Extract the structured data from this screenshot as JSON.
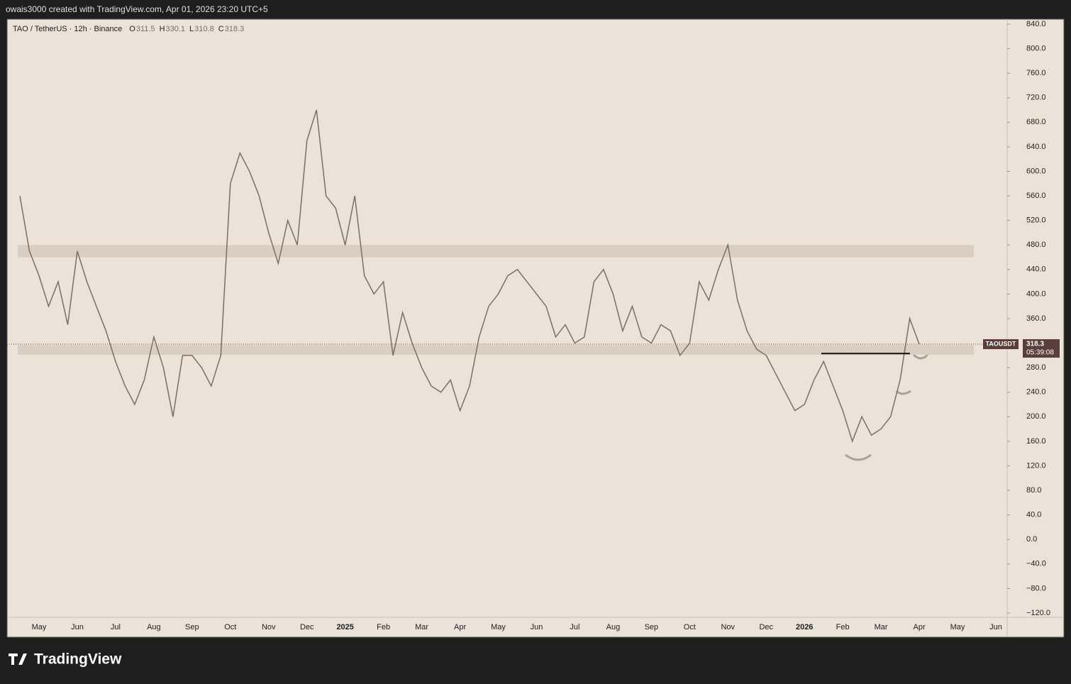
{
  "header": "owais3000 created with TradingView.com, Apr 01, 2026 23:20 UTC+5",
  "footer": "TradingView",
  "chart_data": {
    "type": "line",
    "title": "TAO / TetherUS · 12h · Binance",
    "ohlc": [
      {
        "label": "O",
        "value": 311.5
      },
      {
        "label": "H",
        "value": 330.1
      },
      {
        "label": "L",
        "value": 310.8
      },
      {
        "label": "C",
        "value": 318.3
      }
    ],
    "symbol": "TAOUSDT",
    "last_price": 318.3,
    "countdown": "05:39:08",
    "zones": [
      {
        "from": 460,
        "to": 480
      },
      {
        "from": 301,
        "to": 317
      }
    ],
    "neckline": 303,
    "categories": [
      null,
      null,
      "May",
      null,
      null,
      null,
      "Jun",
      null,
      null,
      null,
      "Jul",
      null,
      null,
      null,
      "Aug",
      null,
      null,
      null,
      "Sep",
      null,
      null,
      null,
      "Oct",
      null,
      null,
      null,
      "Nov",
      null,
      null,
      null,
      "Dec",
      null,
      null,
      null,
      "2025",
      null,
      null,
      null,
      "Feb",
      null,
      null,
      null,
      "Mar",
      null,
      null,
      null,
      "Apr",
      null,
      null,
      null,
      "May",
      null,
      null,
      null,
      "Jun",
      null,
      null,
      null,
      "Jul",
      null,
      null,
      null,
      "Aug",
      null,
      null,
      null,
      "Sep",
      null,
      null,
      null,
      "Oct",
      null,
      null,
      null,
      "Nov",
      null,
      null,
      null,
      "Dec",
      null,
      null,
      null,
      "2026",
      null,
      null,
      null,
      "Feb",
      null,
      null,
      null,
      "Mar",
      null,
      null,
      null,
      "Apr",
      null,
      null,
      null,
      "May",
      null,
      null,
      null,
      "Jun"
    ],
    "series": [
      {
        "name": "TAOUSDT",
        "color": "#7a6f63",
        "values": [
          560,
          470,
          430,
          380,
          420,
          350,
          470,
          420,
          380,
          340,
          290,
          250,
          220,
          260,
          330,
          280,
          200,
          300,
          300,
          280,
          250,
          300,
          580,
          630,
          600,
          560,
          500,
          450,
          520,
          480,
          650,
          700,
          560,
          540,
          480,
          560,
          430,
          400,
          420,
          300,
          370,
          320,
          280,
          250,
          240,
          260,
          210,
          250,
          330,
          380,
          400,
          430,
          440,
          420,
          400,
          380,
          330,
          350,
          320,
          330,
          420,
          440,
          400,
          340,
          380,
          330,
          320,
          350,
          340,
          300,
          320,
          420,
          390,
          440,
          480,
          390,
          340,
          310,
          300,
          270,
          240,
          210,
          220,
          260,
          290,
          250,
          210,
          160,
          200,
          170,
          180,
          200,
          260,
          360,
          318.3,
          null,
          null,
          null,
          null,
          null,
          null,
          null,
          null
        ]
      }
    ],
    "ylim": [
      -120,
      840
    ],
    "yticks": [
      {
        "value": 840,
        "label": "840.0"
      },
      {
        "value": 800,
        "label": "800.0"
      },
      {
        "value": 760,
        "label": "760.0"
      },
      {
        "value": 720,
        "label": "720.0"
      },
      {
        "value": 680,
        "label": "680.0"
      },
      {
        "value": 640,
        "label": "640.0"
      },
      {
        "value": 600,
        "label": "600.0"
      },
      {
        "value": 560,
        "label": "560.0"
      },
      {
        "value": 520,
        "label": "520.0"
      },
      {
        "value": 480,
        "label": "480.0"
      },
      {
        "value": 440,
        "label": "440.0"
      },
      {
        "value": 400,
        "label": "400.0"
      },
      {
        "value": 360,
        "label": "360.0"
      },
      {
        "value": 320,
        "label": "320.0"
      },
      {
        "value": 280,
        "label": "280.0"
      },
      {
        "value": 240,
        "label": "240.0"
      },
      {
        "value": 200,
        "label": "200.0"
      },
      {
        "value": 160,
        "label": "160.0"
      },
      {
        "value": 120,
        "label": "120.0"
      },
      {
        "value": 80,
        "label": "80.0"
      },
      {
        "value": 40,
        "label": "40.0"
      },
      {
        "value": 0,
        "label": "0.0"
      },
      {
        "value": -40,
        "label": "−40.0"
      },
      {
        "value": -80,
        "label": "−80.0"
      },
      {
        "value": -120,
        "label": "−120.0"
      }
    ]
  }
}
